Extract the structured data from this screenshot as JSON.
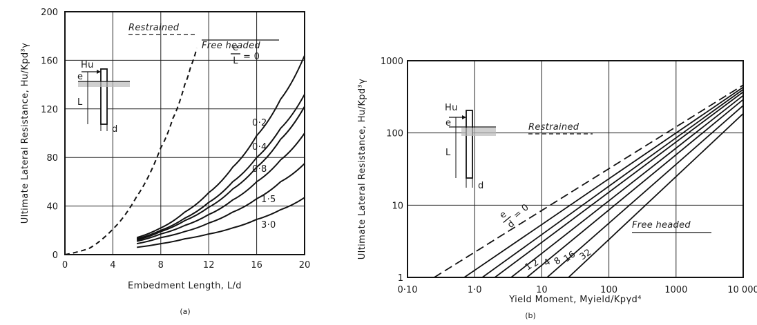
{
  "chart_data": [
    {
      "panel": "(a)",
      "type": "line",
      "xlabel": "Embedment Length, L/d",
      "ylabel": "Ultimate Lateral Resistance, Hu/Kpd³γ",
      "xlim": [
        0,
        20
      ],
      "ylim": [
        0,
        200
      ],
      "xticks": [
        "0",
        "4",
        "8",
        "12",
        "16",
        "20"
      ],
      "yticks": [
        "0",
        "40",
        "80",
        "120",
        "160",
        "200"
      ],
      "grid": true,
      "series": [
        {
          "name": "Restrained",
          "style": "dashed",
          "x": [
            0,
            2,
            4,
            6,
            8,
            9,
            10,
            10.5,
            11
          ],
          "y": [
            0,
            5,
            21,
            48,
            88,
            112,
            140,
            155,
            170
          ]
        },
        {
          "name": "0",
          "group": "Free headed",
          "style": "solid",
          "x": [
            6,
            8,
            10,
            12,
            14,
            16,
            18,
            20
          ],
          "y": [
            14,
            22,
            35,
            51,
            72,
            98,
            128,
            164
          ]
        },
        {
          "name": "0·2",
          "group": "Free headed",
          "style": "solid",
          "x": [
            6,
            8,
            10,
            12,
            14,
            16,
            18,
            20
          ],
          "y": [
            13,
            20,
            30,
            43,
            60,
            80,
            104,
            132
          ]
        },
        {
          "name": "0·4",
          "group": "Free headed",
          "style": "solid",
          "x": [
            6,
            8,
            10,
            12,
            14,
            16,
            18,
            20
          ],
          "y": [
            12,
            19,
            28,
            39,
            54,
            72,
            95,
            122
          ]
        },
        {
          "name": "0·8",
          "group": "Free headed",
          "style": "solid",
          "x": [
            6,
            8,
            10,
            12,
            14,
            16,
            18,
            20
          ],
          "y": [
            11,
            17,
            24,
            33,
            45,
            60,
            78,
            100
          ]
        },
        {
          "name": "1·5",
          "group": "Free headed",
          "style": "solid",
          "x": [
            6,
            8,
            10,
            12,
            14,
            16,
            18,
            20
          ],
          "y": [
            9,
            14,
            19,
            26,
            35,
            46,
            60,
            75
          ]
        },
        {
          "name": "3·0",
          "group": "Free headed",
          "style": "solid",
          "x": [
            6,
            8,
            10,
            12,
            14,
            16,
            18,
            20
          ],
          "y": [
            6,
            9,
            13,
            17,
            22,
            29,
            37,
            47
          ]
        }
      ],
      "annotations": [
        "Restrained",
        "Free headed",
        "e",
        "L",
        "= 0"
      ],
      "inset_labels": [
        "Hu",
        "e",
        "L",
        "d"
      ]
    },
    {
      "panel": "(b)",
      "type": "line",
      "xscale": "log",
      "yscale": "log",
      "xlabel": "Yield Moment, Myield/Kpγd⁴",
      "ylabel": "Ultimate Lateral Resistance, Hu/Kpd³γ",
      "xlim": [
        0.1,
        10000
      ],
      "ylim": [
        1,
        1000
      ],
      "xticks": [
        "0·10",
        "1·0",
        "10",
        "100",
        "1000",
        "10 000"
      ],
      "yticks": [
        "1",
        "10",
        "100",
        "1000"
      ],
      "grid": true,
      "series": [
        {
          "name": "Restrained",
          "style": "dashed",
          "x": [
            0.25,
            10000
          ],
          "y": [
            1,
            460
          ]
        },
        {
          "name": "0",
          "group": "Free headed",
          "style": "solid",
          "x": [
            0.7,
            10000
          ],
          "y": [
            1,
            430
          ]
        },
        {
          "name": "1",
          "group": "Free headed",
          "style": "solid",
          "x": [
            1.3,
            10000
          ],
          "y": [
            1,
            400
          ]
        },
        {
          "name": "2",
          "group": "Free headed",
          "style": "solid",
          "x": [
            2,
            10000
          ],
          "y": [
            1,
            370
          ]
        },
        {
          "name": "4",
          "group": "Free headed",
          "style": "solid",
          "x": [
            3.5,
            10000
          ],
          "y": [
            1,
            330
          ]
        },
        {
          "name": "8",
          "group": "Free headed",
          "style": "solid",
          "x": [
            6,
            10000
          ],
          "y": [
            1,
            290
          ]
        },
        {
          "name": "16",
          "group": "Free headed",
          "style": "solid",
          "x": [
            12,
            10000
          ],
          "y": [
            1,
            240
          ]
        },
        {
          "name": "32",
          "group": "Free headed",
          "style": "solid",
          "x": [
            25,
            10000
          ],
          "y": [
            1,
            185
          ]
        }
      ],
      "annotations": [
        "Restrained",
        "Free headed",
        "e",
        "d",
        "= 0"
      ],
      "inset_labels": [
        "Hu",
        "e",
        "L",
        "d"
      ]
    }
  ]
}
